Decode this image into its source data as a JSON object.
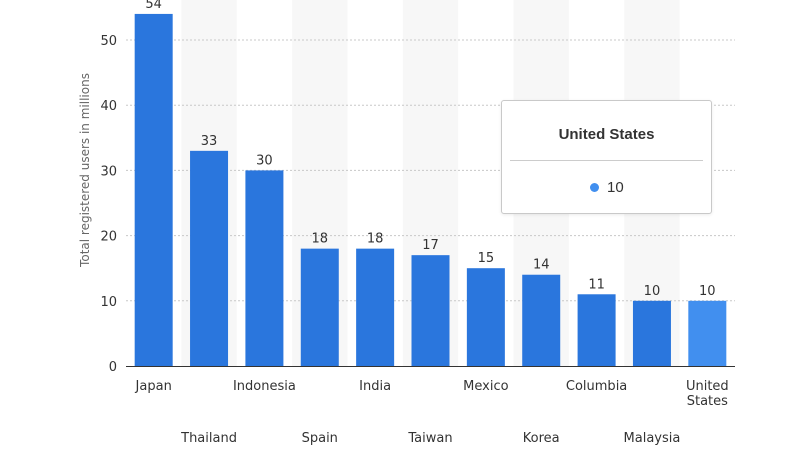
{
  "chart_data": {
    "type": "bar",
    "categories": [
      "Japan",
      "Thailand",
      "Indonesia",
      "Spain",
      "India",
      "Taiwan",
      "Mexico",
      "Korea",
      "Columbia",
      "Malaysia",
      "United States"
    ],
    "values": [
      54,
      33,
      30,
      18,
      18,
      17,
      15,
      14,
      11,
      10,
      10
    ],
    "ylabel": "Total registered users in millions",
    "xlabel": "",
    "ylim": [
      0,
      55
    ],
    "yticks": [
      0,
      10,
      20,
      30,
      40,
      50
    ],
    "grid": true,
    "highlighted_category": "United States"
  },
  "colors": {
    "bar": "#2a76dd",
    "bar_highlight": "#418fef",
    "gridline": "#c8c8c8"
  },
  "tooltip": {
    "title": "United States",
    "value": "10"
  }
}
